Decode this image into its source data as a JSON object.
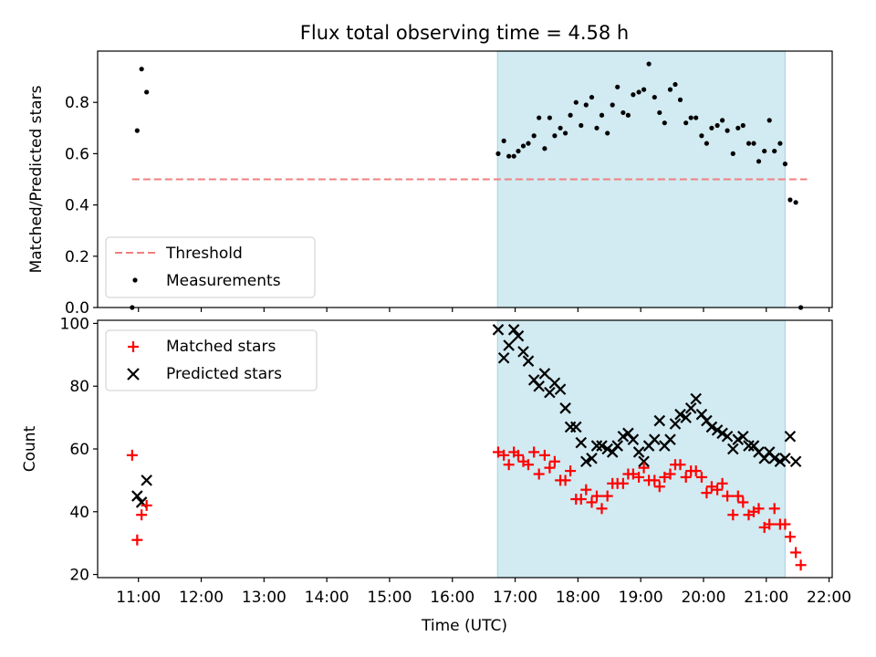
{
  "title": "Flux total observing time = 4.58 h",
  "colors": {
    "shade": "#add8e6",
    "threshold": "#f08080",
    "measurement": "#000000",
    "matched": "#ff0000",
    "predicted": "#000000"
  },
  "chart_data": [
    {
      "type": "scatter",
      "ylabel": "Matched/Predicted stars",
      "xlim": [
        10.35,
        22.05
      ],
      "ylim": [
        0,
        1.0
      ],
      "yticks": [
        0.0,
        0.2,
        0.4,
        0.6,
        0.8
      ],
      "ytick_labels": [
        "0.0",
        "0.2",
        "0.4",
        "0.6",
        "0.8"
      ],
      "shaded_span": [
        16.72,
        21.3
      ],
      "threshold": {
        "value": 0.5,
        "x_range": [
          10.9,
          21.65
        ]
      },
      "legend": {
        "position": "lower-left",
        "entries": [
          "Threshold",
          "Measurements"
        ]
      },
      "series": [
        {
          "name": "Measurements",
          "marker": "dot",
          "x": [
            10.9,
            10.98,
            11.05,
            11.13,
            16.73,
            16.82,
            16.9,
            16.98,
            17.05,
            17.13,
            17.21,
            17.3,
            17.38,
            17.47,
            17.55,
            17.63,
            17.72,
            17.8,
            17.88,
            17.97,
            18.05,
            18.13,
            18.22,
            18.3,
            18.38,
            18.47,
            18.55,
            18.63,
            18.72,
            18.8,
            18.88,
            18.97,
            19.05,
            19.13,
            19.22,
            19.3,
            19.38,
            19.47,
            19.55,
            19.63,
            19.72,
            19.8,
            19.88,
            19.97,
            20.05,
            20.13,
            20.22,
            20.3,
            20.38,
            20.47,
            20.55,
            20.63,
            20.72,
            20.8,
            20.88,
            20.97,
            21.05,
            21.13,
            21.22,
            21.3,
            21.38,
            21.47,
            21.55
          ],
          "y": [
            0.0,
            0.69,
            0.93,
            0.84,
            0.6,
            0.65,
            0.59,
            0.59,
            0.61,
            0.63,
            0.64,
            0.67,
            0.74,
            0.62,
            0.74,
            0.67,
            0.7,
            0.68,
            0.75,
            0.8,
            0.71,
            0.79,
            0.82,
            0.7,
            0.75,
            0.68,
            0.79,
            0.86,
            0.76,
            0.75,
            0.83,
            0.84,
            0.85,
            0.95,
            0.82,
            0.76,
            0.72,
            0.85,
            0.87,
            0.81,
            0.72,
            0.74,
            0.74,
            0.67,
            0.64,
            0.7,
            0.71,
            0.73,
            0.69,
            0.6,
            0.7,
            0.71,
            0.64,
            0.64,
            0.57,
            0.61,
            0.73,
            0.61,
            0.64,
            0.56,
            0.42,
            0.41,
            0.0
          ]
        }
      ]
    },
    {
      "type": "scatter",
      "ylabel": "Count",
      "xlabel": "Time (UTC)",
      "xlim": [
        10.35,
        22.05
      ],
      "ylim": [
        19,
        101
      ],
      "yticks": [
        20,
        40,
        60,
        80,
        100
      ],
      "ytick_labels": [
        "20",
        "40",
        "60",
        "80",
        "100"
      ],
      "xticks": [
        11,
        12,
        13,
        14,
        15,
        16,
        17,
        18,
        19,
        20,
        21,
        22
      ],
      "xtick_labels": [
        "11:00",
        "12:00",
        "13:00",
        "14:00",
        "15:00",
        "16:00",
        "17:00",
        "18:00",
        "19:00",
        "20:00",
        "21:00",
        "22:00"
      ],
      "shaded_span": [
        16.72,
        21.3
      ],
      "legend": {
        "position": "upper-left",
        "entries": [
          "Matched stars",
          "Predicted stars"
        ]
      },
      "series": [
        {
          "name": "Matched stars",
          "marker": "plus",
          "x": [
            10.9,
            10.98,
            11.05,
            11.13,
            16.73,
            16.82,
            16.9,
            16.98,
            17.05,
            17.13,
            17.21,
            17.3,
            17.38,
            17.47,
            17.55,
            17.63,
            17.72,
            17.8,
            17.88,
            17.97,
            18.05,
            18.13,
            18.22,
            18.3,
            18.38,
            18.47,
            18.55,
            18.63,
            18.72,
            18.8,
            18.88,
            18.97,
            19.05,
            19.13,
            19.22,
            19.3,
            19.38,
            19.47,
            19.55,
            19.63,
            19.72,
            19.8,
            19.88,
            19.97,
            20.05,
            20.13,
            20.22,
            20.3,
            20.38,
            20.47,
            20.55,
            20.63,
            20.72,
            20.8,
            20.88,
            20.97,
            21.05,
            21.13,
            21.22,
            21.3,
            21.38,
            21.47,
            21.55
          ],
          "y": [
            58,
            31,
            39,
            42,
            59,
            58,
            55,
            59,
            58,
            56,
            55,
            59,
            52,
            58,
            54,
            56,
            50,
            50,
            53,
            44,
            44,
            47,
            43,
            45,
            41,
            45,
            49,
            49,
            49,
            52,
            52,
            51,
            54,
            50,
            50,
            48,
            51,
            52,
            55,
            55,
            51,
            53,
            53,
            51,
            46,
            48,
            47,
            49,
            45,
            39,
            45,
            43,
            39,
            40,
            41,
            35,
            36,
            41,
            36,
            36,
            32,
            27,
            23
          ]
        },
        {
          "name": "Predicted stars",
          "marker": "x",
          "x": [
            10.98,
            11.05,
            11.13,
            16.73,
            16.82,
            16.9,
            16.98,
            17.05,
            17.13,
            17.21,
            17.3,
            17.38,
            17.47,
            17.55,
            17.63,
            17.72,
            17.8,
            17.88,
            17.97,
            18.05,
            18.13,
            18.22,
            18.3,
            18.38,
            18.47,
            18.55,
            18.63,
            18.72,
            18.8,
            18.88,
            18.97,
            19.05,
            19.13,
            19.22,
            19.3,
            19.38,
            19.47,
            19.55,
            19.63,
            19.72,
            19.8,
            19.88,
            19.97,
            20.05,
            20.13,
            20.22,
            20.3,
            20.38,
            20.47,
            20.55,
            20.63,
            20.72,
            20.8,
            20.88,
            20.97,
            21.05,
            21.13,
            21.22,
            21.3,
            21.38,
            21.47
          ],
          "y": [
            45,
            43,
            50,
            98,
            89,
            93,
            98,
            96,
            91,
            88,
            82,
            80,
            84,
            78,
            81,
            79,
            73,
            67,
            67,
            62,
            56,
            57,
            61,
            61,
            60,
            59,
            61,
            64,
            65,
            63,
            59,
            56,
            61,
            63,
            69,
            61,
            63,
            68,
            71,
            70,
            73,
            76,
            71,
            69,
            67,
            66,
            65,
            64,
            60,
            63,
            64,
            61,
            61,
            59,
            57,
            59,
            57,
            56,
            57,
            64,
            56
          ]
        }
      ]
    }
  ]
}
